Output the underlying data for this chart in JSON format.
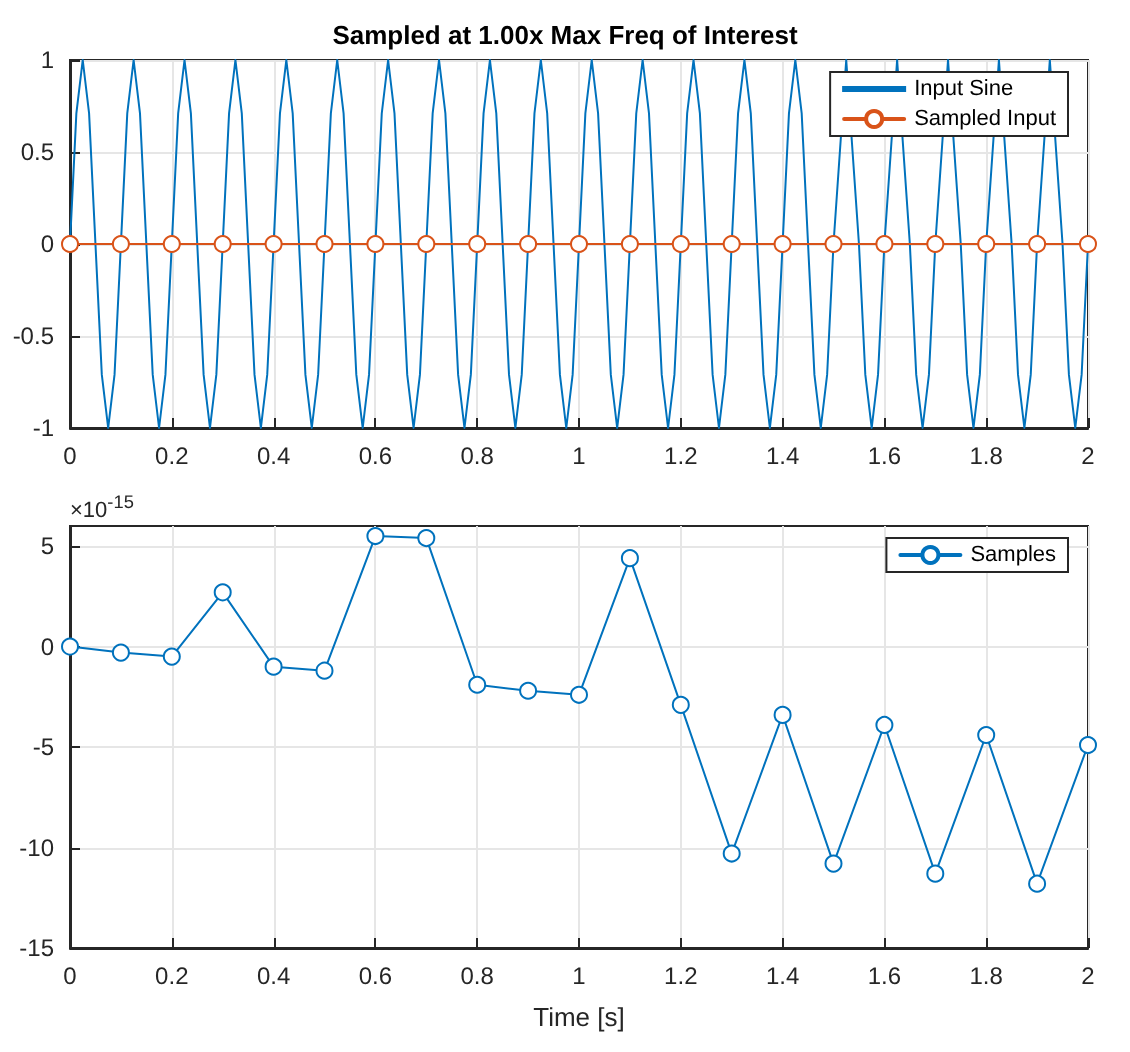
{
  "chart_data": [
    {
      "type": "line",
      "title": "Sampled at 1.00x Max Freq of Interest",
      "xlim": [
        0,
        2
      ],
      "xticks": [
        0,
        0.2,
        0.4,
        0.6,
        0.8,
        1,
        1.2,
        1.4,
        1.6,
        1.8,
        2
      ],
      "ylim": [
        -1,
        1
      ],
      "yticks": [
        -1,
        -0.5,
        0,
        0.5,
        1
      ],
      "grid": true,
      "legend": "top right",
      "series": [
        {
          "name": "Input Sine",
          "color": "#0072bd",
          "marker": "none",
          "x": [
            0,
            0.0125,
            0.025,
            0.0375,
            0.05,
            0.0625,
            0.075,
            0.0875,
            0.1,
            0.1125,
            0.125,
            0.1375,
            0.15,
            0.1625,
            0.175,
            0.1875,
            0.2,
            0.2125,
            0.225,
            0.2375,
            0.25,
            0.2625,
            0.275,
            0.2875,
            0.3,
            0.3125,
            0.325,
            0.3375,
            0.35,
            0.3625,
            0.375,
            0.3875,
            0.4,
            0.4125,
            0.425,
            0.4375,
            0.45,
            0.4625,
            0.475,
            0.4875,
            0.5,
            0.5125,
            0.525,
            0.5375,
            0.55,
            0.5625,
            0.575,
            0.5875,
            0.6,
            0.6125,
            0.625,
            0.6375,
            0.65,
            0.6625,
            0.675,
            0.6875,
            0.7,
            0.7125,
            0.725,
            0.7375,
            0.75,
            0.7625,
            0.775,
            0.7875,
            0.8,
            0.8125,
            0.825,
            0.8375,
            0.85,
            0.8625,
            0.875,
            0.8875,
            0.9,
            0.9125,
            0.925,
            0.9375,
            0.95,
            0.9625,
            0.975,
            0.9875,
            1,
            1.0125,
            1.025,
            1.0375,
            1.05,
            1.0625,
            1.075,
            1.0875,
            1.1,
            1.1125,
            1.125,
            1.1375,
            1.15,
            1.1625,
            1.175,
            1.1875,
            1.2,
            1.2125,
            1.225,
            1.2375,
            1.25,
            1.2625,
            1.275,
            1.2875,
            1.3,
            1.3125,
            1.325,
            1.3375,
            1.35,
            1.3625,
            1.375,
            1.3875,
            1.4,
            1.4125,
            1.425,
            1.4375,
            1.45,
            1.4625,
            1.475,
            1.4875,
            1.5,
            1.5125,
            1.525,
            1.5375,
            1.55,
            1.5625,
            1.575,
            1.5875,
            1.6,
            1.6125,
            1.625,
            1.6375,
            1.65,
            1.6625,
            1.675,
            1.6875,
            1.7,
            1.7125,
            1.725,
            1.7375,
            1.75,
            1.7625,
            1.775,
            1.7875,
            1.8,
            1.8125,
            1.825,
            1.8375,
            1.85,
            1.8625,
            1.875,
            1.8875,
            1.9,
            1.9125,
            1.925,
            1.9375,
            1.95,
            1.9625,
            1.975,
            1.9875,
            2
          ],
          "values": [
            0,
            0.71,
            1,
            0.71,
            0,
            -0.71,
            -1,
            -0.71,
            0,
            0.71,
            1,
            0.71,
            0,
            -0.71,
            -1,
            -0.71,
            0,
            0.71,
            1,
            0.71,
            0,
            -0.71,
            -1,
            -0.71,
            0,
            0.71,
            1,
            0.71,
            0,
            -0.71,
            -1,
            -0.71,
            0,
            0.71,
            1,
            0.71,
            0,
            -0.71,
            -1,
            -0.71,
            0,
            0.71,
            1,
            0.71,
            0,
            -0.71,
            -1,
            -0.71,
            0,
            0.71,
            1,
            0.71,
            0,
            -0.71,
            -1,
            -0.71,
            0,
            0.71,
            1,
            0.71,
            0,
            -0.71,
            -1,
            -0.71,
            0,
            0.71,
            1,
            0.71,
            0,
            -0.71,
            -1,
            -0.71,
            0,
            0.71,
            1,
            0.71,
            0,
            -0.71,
            -1,
            -0.71,
            0,
            0.71,
            1,
            0.71,
            0,
            -0.71,
            -1,
            -0.71,
            0,
            0.71,
            1,
            0.71,
            0,
            -0.71,
            -1,
            -0.71,
            0,
            0.71,
            1,
            0.71,
            0,
            -0.71,
            -1,
            -0.71,
            0,
            0.71,
            1,
            0.71,
            0,
            -0.71,
            -1,
            -0.71,
            0,
            0.71,
            1,
            0.71,
            0,
            -0.71,
            -1,
            -0.71,
            0,
            null,
            1,
            null,
            0,
            -0.71,
            -1,
            -0.71,
            0,
            null,
            1,
            null,
            0,
            -0.71,
            -1,
            -0.71,
            0,
            null,
            1,
            null,
            0,
            -0.71,
            -1,
            -0.71,
            0,
            null,
            1,
            null,
            0,
            -0.71,
            -1,
            -0.71,
            0,
            null,
            1,
            null,
            0,
            -0.71,
            -1,
            -0.71,
            0
          ]
        },
        {
          "name": "Sampled Input",
          "color": "#d95319",
          "marker": "circle",
          "x": [
            0,
            0.1,
            0.2,
            0.3,
            0.4,
            0.5,
            0.6,
            0.7,
            0.8,
            0.9,
            1,
            1.1,
            1.2,
            1.3,
            1.4,
            1.5,
            1.6,
            1.7,
            1.8,
            1.9,
            2
          ],
          "values": [
            0,
            0,
            0,
            0,
            0,
            0,
            0,
            0,
            0,
            0,
            0,
            0,
            0,
            0,
            0,
            0,
            0,
            0,
            0,
            0,
            0
          ]
        }
      ]
    },
    {
      "type": "line",
      "xlabel": "Time [s]",
      "annotations": [
        "×10$^{-15}$"
      ],
      "xlim": [
        0,
        2
      ],
      "xticks": [
        0,
        0.2,
        0.4,
        0.6,
        0.8,
        1,
        1.2,
        1.4,
        1.6,
        1.8,
        2
      ],
      "ylim": [
        -15,
        6
      ],
      "yticks": [
        -15,
        -10,
        -5,
        0,
        5
      ],
      "grid": true,
      "legend": "top right",
      "marker": "circle",
      "x": [
        0,
        0.1,
        0.2,
        0.3,
        0.4,
        0.5,
        0.6,
        0.7,
        0.8,
        0.9,
        1,
        1.1,
        1.2,
        1.3,
        1.4,
        1.5,
        1.6,
        1.7,
        1.8,
        1.9,
        2
      ],
      "series": [
        {
          "name": "Samples",
          "color": "#0072bd",
          "values": [
            0,
            -0.3,
            -0.5,
            2.7,
            -1,
            -1.2,
            5.5,
            5.4,
            -1.9,
            -2.2,
            -2.4,
            4.4,
            -2.9,
            -10.3,
            -3.4,
            -10.8,
            -3.9,
            -11.3,
            -4.4,
            -11.8,
            -4.9
          ]
        }
      ]
    }
  ]
}
